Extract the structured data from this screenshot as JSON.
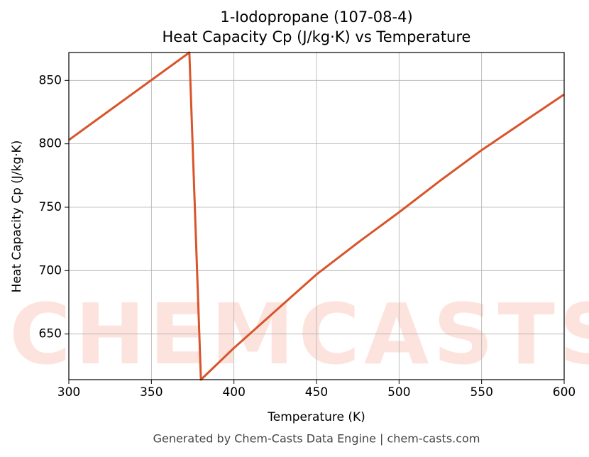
{
  "chart_data": {
    "type": "line",
    "title": "1-Iodopropane (107-08-4)",
    "subtitle": "Heat Capacity Cp (J/kg·K) vs Temperature",
    "x_label": "Temperature (K)",
    "y_label": "Heat Capacity Cp (J/kg·K)",
    "footer": "Generated by Chem-Casts Data Engine | chem-casts.com",
    "watermark": "CHEMCASTS",
    "x": [
      300,
      373,
      380,
      400,
      425,
      450,
      475,
      500,
      525,
      550,
      575,
      600
    ],
    "series": [
      {
        "name": "Cp",
        "color": "#d9542a",
        "values": [
          803,
          872,
          614,
          639,
          668,
          697,
          722,
          746,
          771,
          795,
          817,
          839
        ]
      }
    ],
    "xlim": [
      300,
      600
    ],
    "xticks": [
      300,
      350,
      400,
      450,
      500,
      550,
      600
    ],
    "ylim": [
      614,
      872
    ],
    "yticks": [
      650,
      700,
      750,
      800,
      850
    ],
    "grid": true
  }
}
